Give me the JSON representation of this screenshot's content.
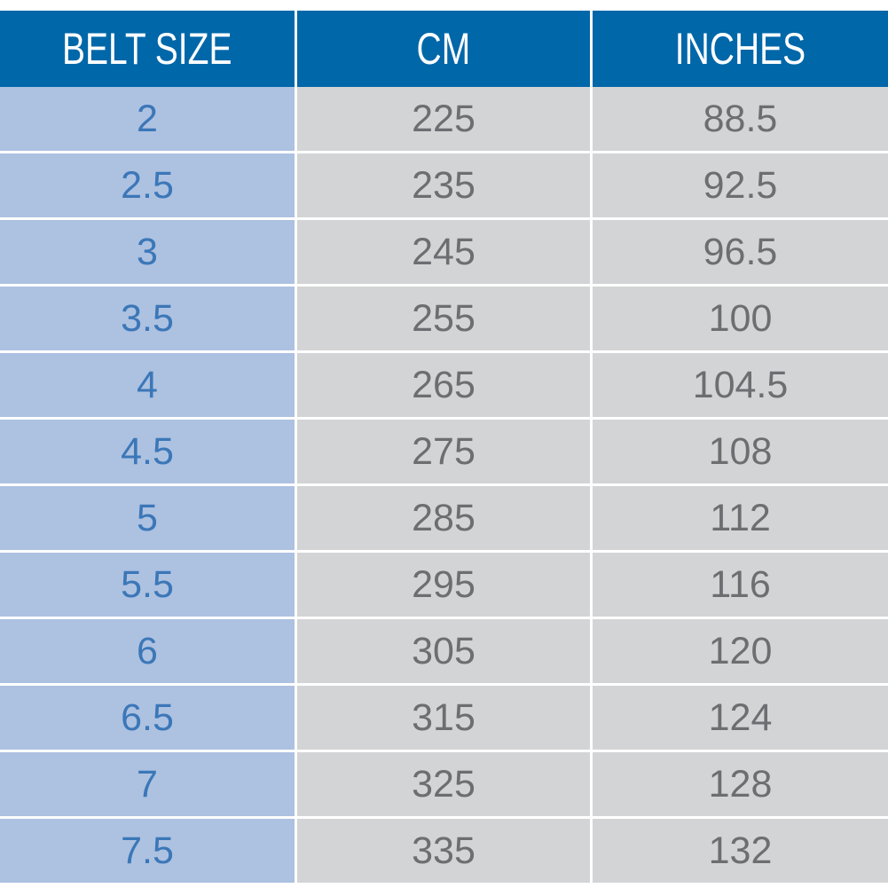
{
  "table": {
    "header": [
      "BELT SIZE",
      "CM",
      "INCHES"
    ],
    "rows": [
      [
        "2",
        "225",
        "88.5"
      ],
      [
        "2.5",
        "235",
        "92.5"
      ],
      [
        "3",
        "245",
        "96.5"
      ],
      [
        "3.5",
        "255",
        "100"
      ],
      [
        "4",
        "265",
        "104.5"
      ],
      [
        "4.5",
        "275",
        "108"
      ],
      [
        "5",
        "285",
        "112"
      ],
      [
        "5.5",
        "295",
        "116"
      ],
      [
        "6",
        "305",
        "120"
      ],
      [
        "6.5",
        "315",
        "124"
      ],
      [
        "7",
        "325",
        "128"
      ],
      [
        "7.5",
        "335",
        "132"
      ]
    ]
  }
}
